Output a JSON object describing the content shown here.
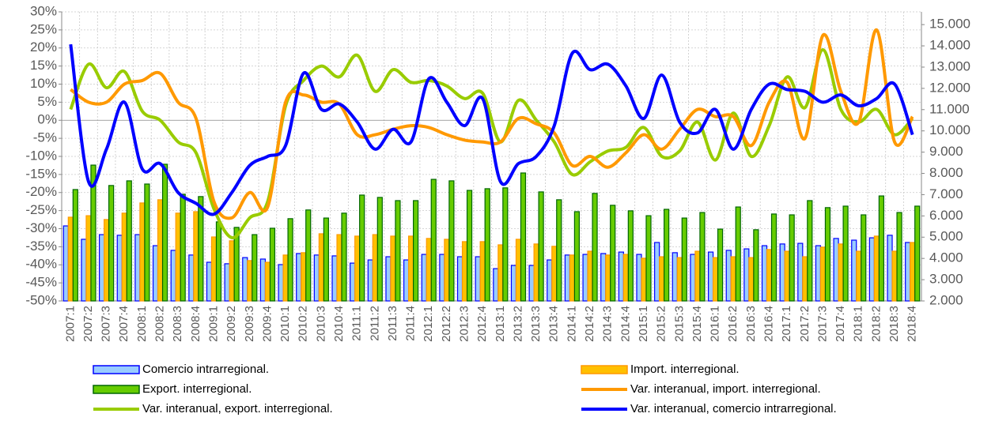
{
  "chart_data": {
    "type": "combo",
    "categories": [
      "2007:1",
      "2007:2",
      "2007:3",
      "2007:4",
      "2008:1",
      "2008:2",
      "2008:3",
      "2008:4",
      "2009:1",
      "2009:2",
      "2009:3",
      "2009:4",
      "2010:1",
      "2010:2",
      "2010:3",
      "2010:4",
      "2011:1",
      "2011:2",
      "2011:3",
      "2011:4",
      "2012:1",
      "2012:2",
      "2012:3",
      "2012:4",
      "2013:1",
      "2013:2",
      "2013:3",
      "2013:4",
      "2014:1",
      "2014:2",
      "2014:3",
      "2014:4",
      "2015:1",
      "2015:2",
      "2015:3",
      "2015:4",
      "2016:1",
      "2016:2",
      "2016:3",
      "2016:4",
      "2017:1",
      "2017:2",
      "2017:3",
      "2017:4",
      "2018:1",
      "2018:2",
      "2018:3",
      "2018:4"
    ],
    "ylim": [
      -50,
      30
    ],
    "yticks": [
      {
        "value": -50,
        "label": "-50%"
      },
      {
        "value": -45,
        "label": "-45%"
      },
      {
        "value": -40,
        "label": "-40%"
      },
      {
        "value": -35,
        "label": "-35%"
      },
      {
        "value": -30,
        "label": "-30%"
      },
      {
        "value": -25,
        "label": "-25%"
      },
      {
        "value": -20,
        "label": "-20%"
      },
      {
        "value": -15,
        "label": "-15%"
      },
      {
        "value": -10,
        "label": "-10%"
      },
      {
        "value": -5,
        "label": "-5%"
      },
      {
        "value": 0,
        "label": "0%"
      },
      {
        "value": 5,
        "label": "5%"
      },
      {
        "value": 10,
        "label": "10%"
      },
      {
        "value": 15,
        "label": "15%"
      },
      {
        "value": 20,
        "label": "20%"
      },
      {
        "value": 25,
        "label": "25%"
      },
      {
        "value": 30,
        "label": "30%"
      }
    ],
    "y2lim": [
      2000,
      15600
    ],
    "y2ticks": [
      {
        "value": 2000,
        "label": "2.000"
      },
      {
        "value": 3000,
        "label": "3.000"
      },
      {
        "value": 4000,
        "label": "4.000"
      },
      {
        "value": 5000,
        "label": "5.000"
      },
      {
        "value": 6000,
        "label": "6.000"
      },
      {
        "value": 7000,
        "label": "7.000"
      },
      {
        "value": 8000,
        "label": "8.000"
      },
      {
        "value": 9000,
        "label": "9.000"
      },
      {
        "value": 10000,
        "label": "10.000"
      },
      {
        "value": 11000,
        "label": "11.000"
      },
      {
        "value": 12000,
        "label": "12.000"
      },
      {
        "value": 13000,
        "label": "13.000"
      },
      {
        "value": 14000,
        "label": "14.000"
      },
      {
        "value": 15000,
        "label": "15.000"
      }
    ],
    "grid": true,
    "series": [
      {
        "name": "Comercio intrarregional.",
        "type": "bar",
        "axis": "y2",
        "color": "#99ccff",
        "edgecolor": "#0000ff",
        "values": [
          5530,
          4900,
          5120,
          5090,
          5120,
          4600,
          4380,
          4160,
          3820,
          3750,
          4040,
          3970,
          3710,
          4230,
          4160,
          4120,
          3780,
          3930,
          4080,
          3930,
          4190,
          4190,
          4080,
          4080,
          3520,
          3670,
          3670,
          3930,
          4160,
          4190,
          4230,
          4300,
          4190,
          4750,
          4270,
          4190,
          4300,
          4380,
          4450,
          4600,
          4680,
          4710,
          4600,
          4940,
          4860,
          4970,
          5090,
          4750
        ]
      },
      {
        "name": "Import. interregional.",
        "type": "bar",
        "axis": "y2",
        "color": "#ffc000",
        "edgecolor": "#ff9900",
        "values": [
          5940,
          6010,
          5830,
          6130,
          6610,
          6760,
          6130,
          6200,
          5010,
          4830,
          3900,
          3820,
          4160,
          4270,
          5160,
          5120,
          5050,
          5120,
          5050,
          5050,
          4940,
          4900,
          4790,
          4790,
          4640,
          4900,
          4680,
          4570,
          4160,
          4340,
          4160,
          4190,
          4010,
          4080,
          4040,
          4340,
          4040,
          4080,
          4040,
          4420,
          4340,
          4080,
          4530,
          4680,
          4340,
          5050,
          4340,
          4750
        ]
      },
      {
        "name": "Export. interregional.",
        "type": "bar",
        "axis": "y2",
        "color": "#66cc00",
        "edgecolor": "#006600",
        "values": [
          7240,
          8390,
          7430,
          7650,
          7500,
          8430,
          7020,
          6910,
          5720,
          5460,
          5120,
          5420,
          5870,
          6280,
          5900,
          6130,
          6980,
          6870,
          6720,
          6720,
          7720,
          7650,
          7200,
          7280,
          7320,
          8020,
          7130,
          6760,
          6200,
          7060,
          6500,
          6240,
          6010,
          6310,
          5900,
          6160,
          5380,
          6420,
          5350,
          6090,
          6050,
          6720,
          6390,
          6460,
          6050,
          6940,
          6160,
          6460
        ]
      },
      {
        "name": "Var. interanual, import. interregional.",
        "type": "line",
        "color": "#ff9900",
        "values": [
          8.5,
          5,
          5,
          10,
          11,
          13,
          5,
          0.5,
          -22.5,
          -27,
          -20,
          -24,
          5,
          7,
          5,
          4.5,
          -4,
          -4,
          -2.5,
          -1.5,
          -2,
          -4,
          -5.5,
          -6,
          -6,
          0.5,
          -1,
          -3.5,
          -12.5,
          -10,
          -13,
          -9,
          -4,
          -8,
          -2.5,
          3,
          1,
          1,
          -7,
          5,
          10.5,
          -5,
          23.5,
          8,
          -0.5,
          25,
          -6,
          1
        ]
      },
      {
        "name": "Var. interanual, export. interregional.",
        "type": "line",
        "color": "#99cc00",
        "values": [
          3,
          15.5,
          9,
          13.5,
          2.5,
          0,
          -6,
          -9,
          -24.5,
          -32.5,
          -27,
          -22.5,
          4,
          11,
          15,
          12,
          18,
          8,
          14,
          10.5,
          11,
          9.5,
          6,
          7.5,
          -6,
          5.5,
          0,
          -6,
          -15,
          -11.5,
          -8.5,
          -7.5,
          -2,
          -10,
          -8.5,
          -0.5,
          -11,
          2,
          -10,
          -1.5,
          12,
          3.5,
          19.5,
          3,
          -0.5,
          3,
          -4,
          0.5
        ]
      },
      {
        "name": "Var. interanual, comercio intrarregional.",
        "type": "line",
        "color": "#0000ff",
        "values": [
          21,
          -17,
          -8,
          5,
          -13.5,
          -12,
          -20,
          -23,
          -26,
          -20,
          -12.5,
          -10,
          -7,
          13,
          3,
          4.5,
          -0.5,
          -8,
          -2.5,
          -6,
          11.5,
          5,
          -1.5,
          6,
          -17,
          -12,
          -10,
          -1.5,
          18.5,
          14,
          15.5,
          9.5,
          0.5,
          12.5,
          -0.5,
          -3.5,
          3,
          -8,
          3,
          10,
          8.5,
          8,
          5,
          7,
          4,
          6,
          10,
          -4
        ]
      }
    ]
  }
}
